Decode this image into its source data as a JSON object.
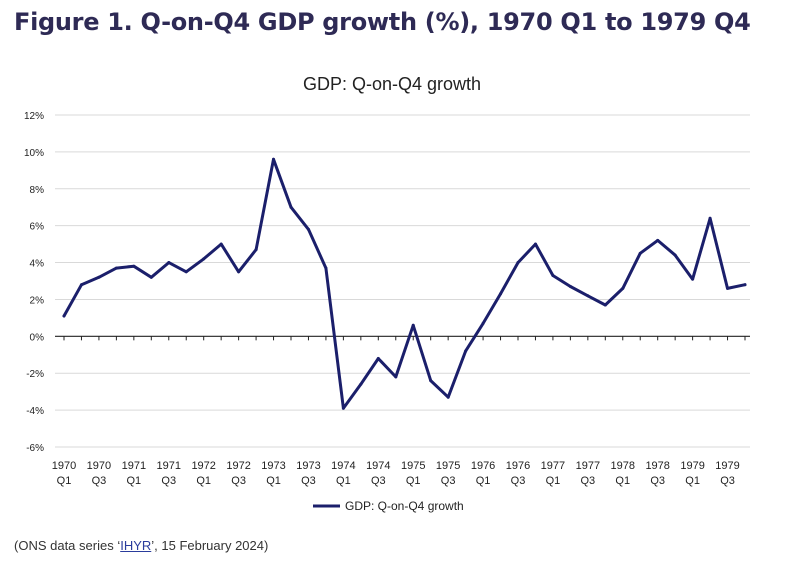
{
  "figure_title": "Figure 1. Q-on-Q4 GDP growth (%), 1970 Q1 to 1979 Q4",
  "source": {
    "prefix": "(ONS data series ‘",
    "link_text": "IHYR",
    "suffix": "’, 15 February 2024)"
  },
  "colors": {
    "line": "#1b1f6b",
    "grid": "#d9d9d9",
    "zero_axis": "#222222",
    "title": "#2e2a55"
  },
  "chart_data": {
    "type": "line",
    "title": "GDP: Q-on-Q4 growth",
    "xlabel": "",
    "ylabel": "",
    "ylim": [
      -6,
      12
    ],
    "yticks": [
      "-6%",
      "-4%",
      "-2%",
      "0%",
      "2%",
      "4%",
      "6%",
      "8%",
      "10%",
      "12%"
    ],
    "ytick_values": [
      -6,
      -4,
      -2,
      0,
      2,
      4,
      6,
      8,
      10,
      12
    ],
    "grid": true,
    "legend_position": "bottom-center",
    "x_tick_labels": [
      [
        "1970",
        "Q1"
      ],
      [
        "1970",
        "Q3"
      ],
      [
        "1971",
        "Q1"
      ],
      [
        "1971",
        "Q3"
      ],
      [
        "1972",
        "Q1"
      ],
      [
        "1972",
        "Q3"
      ],
      [
        "1973",
        "Q1"
      ],
      [
        "1973",
        "Q3"
      ],
      [
        "1974",
        "Q1"
      ],
      [
        "1974",
        "Q3"
      ],
      [
        "1975",
        "Q1"
      ],
      [
        "1975",
        "Q3"
      ],
      [
        "1976",
        "Q1"
      ],
      [
        "1976",
        "Q3"
      ],
      [
        "1977",
        "Q1"
      ],
      [
        "1977",
        "Q3"
      ],
      [
        "1978",
        "Q1"
      ],
      [
        "1978",
        "Q3"
      ],
      [
        "1979",
        "Q1"
      ],
      [
        "1979",
        "Q3"
      ]
    ],
    "series": [
      {
        "name": "GDP: Q-on-Q4 growth",
        "values": [
          1.1,
          2.8,
          3.2,
          3.7,
          3.8,
          3.2,
          4.0,
          3.5,
          4.2,
          5.0,
          3.5,
          4.7,
          9.6,
          7.0,
          5.8,
          3.7,
          -3.9,
          -2.6,
          -1.2,
          -2.2,
          0.6,
          -2.4,
          -3.3,
          -0.8,
          0.7,
          2.3,
          4.0,
          5.0,
          3.3,
          2.7,
          2.2,
          1.7,
          2.6,
          4.5,
          5.2,
          4.4,
          3.1,
          6.4,
          2.6,
          2.8
        ]
      }
    ]
  }
}
